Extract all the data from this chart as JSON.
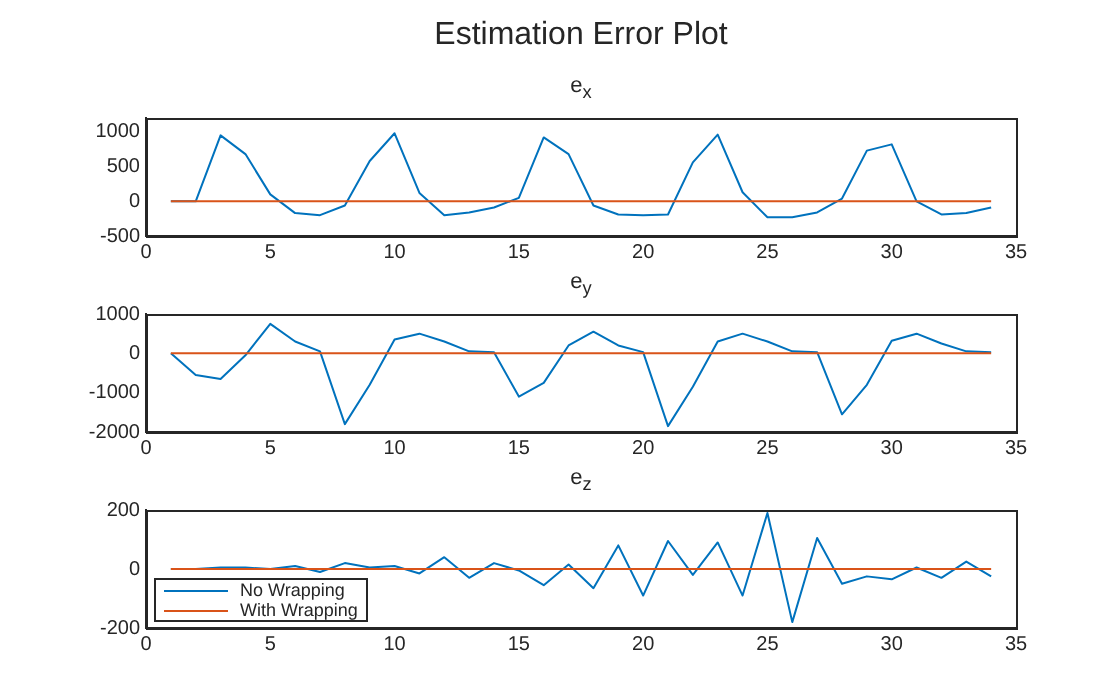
{
  "chart_data": [
    {
      "type": "line",
      "title": "Estimation Error Plot",
      "subtitle": "e$_{x}$",
      "x": [
        1,
        2,
        3,
        4,
        5,
        6,
        7,
        8,
        9,
        10,
        11,
        12,
        13,
        14,
        15,
        16,
        17,
        18,
        19,
        20,
        21,
        22,
        23,
        24,
        25,
        26,
        27,
        28,
        29,
        30,
        31,
        32,
        33,
        34
      ],
      "series": [
        {
          "color": "#0072bd",
          "values": [
            0,
            0,
            950,
            680,
            100,
            -170,
            -200,
            -60,
            580,
            980,
            120,
            -200,
            -160,
            -90,
            50,
            920,
            680,
            -60,
            -190,
            -200,
            -190,
            560,
            960,
            130,
            -230,
            -230,
            -160,
            40,
            730,
            820,
            0,
            -190,
            -170,
            -90
          ]
        },
        {
          "color": "#d95319",
          "values": [
            0,
            0,
            0,
            0,
            0,
            0,
            0,
            0,
            0,
            0,
            0,
            0,
            0,
            0,
            0,
            0,
            0,
            0,
            0,
            0,
            0,
            0,
            0,
            0,
            0,
            0,
            0,
            0,
            0,
            0,
            0,
            0,
            0,
            0
          ]
        }
      ],
      "xlim": [
        0,
        35
      ],
      "xticks": [
        0,
        5,
        10,
        15,
        20,
        25,
        30,
        35
      ],
      "ylim": [
        -500,
        1200
      ],
      "yticks": [
        -500,
        0,
        500,
        1000
      ],
      "grid": false,
      "legend": false
    },
    {
      "type": "line",
      "title": "e$_{y}$",
      "x": [
        1,
        2,
        3,
        4,
        5,
        6,
        7,
        8,
        9,
        10,
        11,
        12,
        13,
        14,
        15,
        16,
        17,
        18,
        19,
        20,
        21,
        22,
        23,
        24,
        25,
        26,
        27,
        28,
        29,
        30,
        31,
        32,
        33,
        34
      ],
      "series": [
        {
          "color": "#0072bd",
          "values": [
            0,
            -550,
            -650,
            -50,
            750,
            300,
            50,
            -1800,
            -800,
            350,
            500,
            300,
            50,
            30,
            -1100,
            -750,
            200,
            550,
            200,
            30,
            -1850,
            -850,
            300,
            500,
            300,
            50,
            30,
            -1550,
            -800,
            320,
            500,
            250,
            50,
            30
          ]
        },
        {
          "color": "#d95319",
          "values": [
            0,
            0,
            0,
            0,
            0,
            0,
            0,
            0,
            0,
            0,
            0,
            0,
            0,
            0,
            0,
            0,
            0,
            0,
            0,
            0,
            0,
            0,
            0,
            0,
            0,
            0,
            0,
            0,
            0,
            0,
            0,
            0,
            0,
            0
          ]
        }
      ],
      "xlim": [
        0,
        35
      ],
      "xticks": [
        0,
        5,
        10,
        15,
        20,
        25,
        30,
        35
      ],
      "ylim": [
        -2000,
        1000
      ],
      "yticks": [
        -2000,
        -1000,
        0,
        1000
      ],
      "grid": false,
      "legend": false
    },
    {
      "type": "line",
      "title": "e$_{z}$",
      "x": [
        1,
        2,
        3,
        4,
        5,
        6,
        7,
        8,
        9,
        10,
        11,
        12,
        13,
        14,
        15,
        16,
        17,
        18,
        19,
        20,
        21,
        22,
        23,
        24,
        25,
        26,
        27,
        28,
        29,
        30,
        31,
        32,
        33,
        34
      ],
      "series": [
        {
          "name": "No Wrapping",
          "color": "#0072bd",
          "values": [
            0,
            0,
            5,
            5,
            0,
            10,
            -10,
            20,
            5,
            10,
            -15,
            40,
            -30,
            20,
            -5,
            -55,
            15,
            -65,
            80,
            -90,
            95,
            -20,
            90,
            -90,
            190,
            -180,
            105,
            -50,
            -25,
            -35,
            5,
            -30,
            25,
            -25
          ]
        },
        {
          "name": "With Wrapping",
          "color": "#d95319",
          "values": [
            0,
            0,
            0,
            0,
            0,
            0,
            0,
            0,
            0,
            0,
            0,
            0,
            0,
            0,
            0,
            0,
            0,
            0,
            0,
            0,
            0,
            0,
            0,
            0,
            0,
            0,
            0,
            0,
            0,
            0,
            0,
            0,
            0,
            0
          ]
        }
      ],
      "xlim": [
        0,
        35
      ],
      "xticks": [
        0,
        5,
        10,
        15,
        20,
        25,
        30,
        35
      ],
      "ylim": [
        -200,
        200
      ],
      "yticks": [
        -200,
        0,
        200
      ],
      "grid": false,
      "legend": "bottom left"
    }
  ]
}
